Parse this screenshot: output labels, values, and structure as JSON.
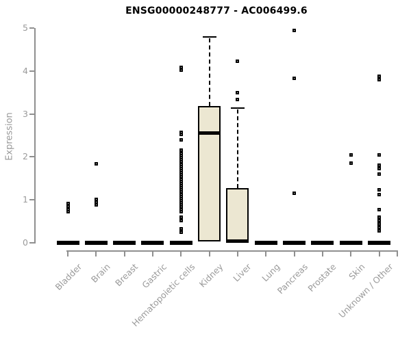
{
  "chart_data": {
    "type": "boxplot",
    "title": "ENSG00000248777 - AC006499.6",
    "ylabel": "Expression",
    "xlabel": "",
    "ylim": [
      0,
      5
    ],
    "yticks": [
      "0",
      "1",
      "2",
      "3",
      "4",
      "5"
    ],
    "grid": false,
    "legend": false,
    "box_fill_color": "#ece7d2",
    "box_border_color": "#000000",
    "axis_color": "#8f8f8f",
    "label_color": "#9a9a9a",
    "categories": [
      "Bladder",
      "Brain",
      "Breast",
      "Gastric",
      "Hematopoietic cells",
      "Kidney",
      "Liver",
      "Lung",
      "Pancreas",
      "Prostate",
      "Skin",
      "Unknown / Other"
    ],
    "boxes": [
      {
        "category": "Bladder",
        "q1": 0,
        "median": 0,
        "q3": 0,
        "whisker_low": 0,
        "whisker_high": 0,
        "outliers": [
          0.92,
          0.85,
          0.78,
          0.73
        ]
      },
      {
        "category": "Brain",
        "q1": 0,
        "median": 0,
        "q3": 0,
        "whisker_low": 0,
        "whisker_high": 0,
        "outliers": [
          1.84,
          1.01,
          0.95,
          0.89
        ]
      },
      {
        "category": "Breast",
        "q1": 0,
        "median": 0,
        "q3": 0,
        "whisker_low": 0,
        "whisker_high": 0,
        "outliers": []
      },
      {
        "category": "Gastric",
        "q1": 0,
        "median": 0,
        "q3": 0,
        "whisker_low": 0,
        "whisker_high": 0,
        "outliers": []
      },
      {
        "category": "Hematopoietic cells",
        "q1": 0,
        "median": 0,
        "q3": 0,
        "whisker_low": 0,
        "whisker_high": 0,
        "outliers": [
          4.08,
          4.02,
          2.57,
          2.52,
          2.39,
          2.15,
          2.08,
          2.03,
          1.98,
          1.93,
          1.88,
          1.83,
          1.78,
          1.73,
          1.68,
          1.63,
          1.58,
          1.53,
          1.48,
          1.43,
          1.38,
          1.33,
          1.28,
          1.23,
          1.18,
          1.13,
          1.08,
          1.03,
          0.98,
          0.93,
          0.88,
          0.83,
          0.78,
          0.73,
          0.59,
          0.51,
          0.33,
          0.25
        ]
      },
      {
        "category": "Kidney",
        "q1": 0.03,
        "median": 2.56,
        "q3": 3.18,
        "whisker_low": 0,
        "whisker_high": 4.8,
        "outliers": []
      },
      {
        "category": "Liver",
        "q1": 0,
        "median": 0.04,
        "q3": 1.27,
        "whisker_low": 0,
        "whisker_high": 3.14,
        "outliers": [
          4.22,
          3.49,
          3.33
        ]
      },
      {
        "category": "Lung",
        "q1": 0,
        "median": 0,
        "q3": 0,
        "whisker_low": 0,
        "whisker_high": 0,
        "outliers": []
      },
      {
        "category": "Pancreas",
        "q1": 0,
        "median": 0,
        "q3": 0,
        "whisker_low": 0,
        "whisker_high": 0,
        "outliers": [
          4.95,
          3.83,
          1.15
        ]
      },
      {
        "category": "Prostate",
        "q1": 0,
        "median": 0,
        "q3": 0,
        "whisker_low": 0,
        "whisker_high": 0,
        "outliers": []
      },
      {
        "category": "Skin",
        "q1": 0,
        "median": 0,
        "q3": 0,
        "whisker_low": 0,
        "whisker_high": 0,
        "outliers": [
          2.05,
          1.86
        ]
      },
      {
        "category": "Unknown / Other",
        "q1": 0,
        "median": 0,
        "q3": 0,
        "whisker_low": 0,
        "whisker_high": 0,
        "outliers": [
          3.87,
          3.8,
          2.04,
          1.8,
          1.72,
          1.6,
          1.23,
          1.12,
          0.78,
          0.6,
          0.52,
          0.44,
          0.36,
          0.28
        ]
      }
    ]
  }
}
